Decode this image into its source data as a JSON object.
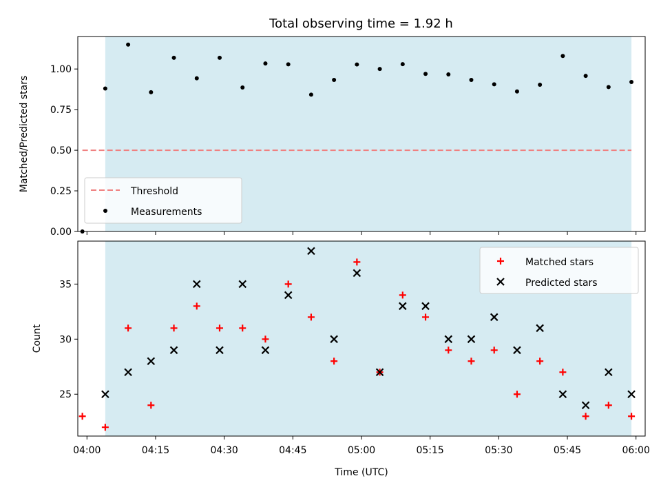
{
  "title": "Total observing time = 1.92 h",
  "colors": {
    "span_fill": "#add8e6",
    "threshold": "#f08080",
    "measurement": "#000000",
    "matched": "#ff0000",
    "predicted": "#000000"
  },
  "chart_data": [
    {
      "type": "scatter",
      "panel": "top",
      "ylabel": "Matched/Predicted stars",
      "xlabel": "",
      "ylim": [
        0,
        1.2
      ],
      "yticks": [
        0.0,
        0.25,
        0.5,
        0.75,
        1.0
      ],
      "ytick_labels": [
        "0.00",
        "0.25",
        "0.50",
        "0.75",
        "1.00"
      ],
      "xlim": [
        "03:58",
        "06:02"
      ],
      "shaded_span": [
        "04:04",
        "05:59"
      ],
      "legend": {
        "placement": "lower-left",
        "entries": [
          "Threshold",
          "Measurements"
        ]
      },
      "threshold": {
        "name": "Threshold",
        "value": 0.5,
        "x_range": [
          "03:59",
          "05:59"
        ],
        "style": "dashed"
      },
      "series": [
        {
          "name": "Measurements",
          "marker": "dot",
          "x": [
            "03:59",
            "04:04",
            "04:09",
            "04:14",
            "04:19",
            "04:24",
            "04:29",
            "04:34",
            "04:39",
            "04:44",
            "04:49",
            "04:54",
            "04:59",
            "05:04",
            "05:09",
            "05:14",
            "05:19",
            "05:24",
            "05:29",
            "05:34",
            "05:39",
            "05:44",
            "05:49",
            "05:54",
            "05:59"
          ],
          "values": [
            0.0,
            0.88,
            1.15,
            0.857,
            1.069,
            0.943,
            1.069,
            0.886,
            1.034,
            1.029,
            0.842,
            0.933,
            1.028,
            1.0,
            1.03,
            0.97,
            0.967,
            0.933,
            0.906,
            0.862,
            0.903,
            1.08,
            0.958,
            0.889,
            0.92
          ]
        }
      ]
    },
    {
      "type": "scatter",
      "panel": "bottom",
      "ylabel": "Count",
      "xlabel": "Time (UTC)",
      "ylim": [
        21.2,
        38.9
      ],
      "yticks": [
        25,
        30,
        35
      ],
      "ytick_labels": [
        "25",
        "30",
        "35"
      ],
      "xlim": [
        "03:58",
        "06:02"
      ],
      "xticks": [
        "04:00",
        "04:15",
        "04:30",
        "04:45",
        "05:00",
        "05:15",
        "05:30",
        "05:45",
        "06:00"
      ],
      "xtick_labels": [
        "04:00",
        "04:15",
        "04:30",
        "04:45",
        "05:00",
        "05:15",
        "05:30",
        "05:45",
        "06:00"
      ],
      "shaded_span": [
        "04:04",
        "05:59"
      ],
      "legend": {
        "placement": "top-right",
        "entries": [
          "Matched stars",
          "Predicted stars"
        ]
      },
      "series": [
        {
          "name": "Matched stars",
          "marker": "plus",
          "x": [
            "03:59",
            "04:04",
            "04:09",
            "04:14",
            "04:19",
            "04:24",
            "04:29",
            "04:34",
            "04:39",
            "04:44",
            "04:49",
            "04:54",
            "04:59",
            "05:04",
            "05:09",
            "05:14",
            "05:19",
            "05:24",
            "05:29",
            "05:34",
            "05:39",
            "05:44",
            "05:49",
            "05:54",
            "05:59"
          ],
          "values": [
            23,
            22,
            31,
            24,
            31,
            33,
            31,
            31,
            30,
            35,
            32,
            28,
            37,
            27,
            34,
            32,
            29,
            28,
            29,
            25,
            28,
            27,
            23,
            24,
            23
          ]
        },
        {
          "name": "Predicted stars",
          "marker": "x",
          "x": [
            "04:04",
            "04:09",
            "04:14",
            "04:19",
            "04:24",
            "04:29",
            "04:34",
            "04:39",
            "04:44",
            "04:49",
            "04:54",
            "04:59",
            "05:04",
            "05:09",
            "05:14",
            "05:19",
            "05:24",
            "05:29",
            "05:34",
            "05:39",
            "05:44",
            "05:49",
            "05:54",
            "05:59"
          ],
          "values": [
            25,
            27,
            28,
            29,
            35,
            29,
            35,
            29,
            34,
            38,
            30,
            36,
            27,
            33,
            33,
            30,
            30,
            32,
            29,
            31,
            25,
            24,
            27,
            25
          ]
        }
      ]
    }
  ]
}
